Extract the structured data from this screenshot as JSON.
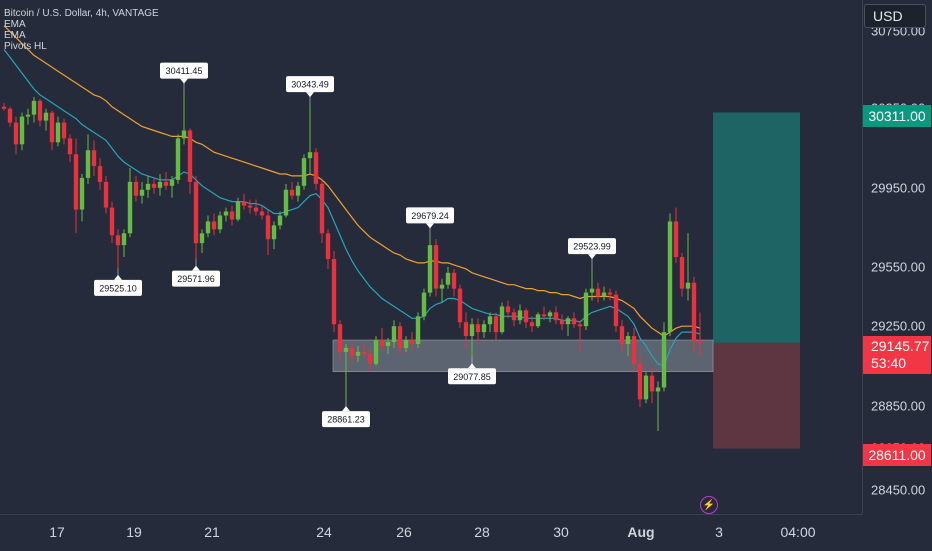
{
  "legend": {
    "symbol": "Bitcoin / U.S. Dollar, 4h, VANTAGE",
    "ind1": "EMA",
    "ind2": "EMA",
    "ind3": "Pivots HL"
  },
  "currency_button": "USD",
  "price_badges": {
    "target": {
      "value": "30311.00",
      "color": "#089981"
    },
    "current": {
      "value": "29145.77",
      "countdown": "53:40",
      "color": "#f23645"
    },
    "stop": {
      "value": "28611.00",
      "color": "#f23645"
    }
  },
  "y_axis_labels": [
    "30750.00",
    "30350.00",
    "29950.00",
    "29550.00",
    "29250.00",
    "28850.00",
    "28650.00",
    "28450.00"
  ],
  "x_axis_labels": [
    "17",
    "19",
    "21",
    "24",
    "26",
    "28",
    "30",
    "Aug",
    "3",
    "04:00"
  ],
  "colors": {
    "up": "#66bb44",
    "down": "#e8323f",
    "ema_fast": "#29a3b8",
    "ema_slow": "#f0a030",
    "zone": "#8a919e",
    "long_target": "#1f6f6d",
    "long_stop": "#6b3a45"
  },
  "chart_data": {
    "type": "candlestick",
    "interval": "4h",
    "y_range": [
      28280,
      30880
    ],
    "pivot_labels": [
      {
        "text": "30411.45",
        "kind": "high",
        "bar": 30,
        "price": 30411.45
      },
      {
        "text": "30343.49",
        "kind": "high",
        "bar": 51,
        "price": 30343.49
      },
      {
        "text": "29679.24",
        "kind": "high",
        "bar": 71,
        "price": 29679.24
      },
      {
        "text": "29523.99",
        "kind": "high",
        "bar": 98,
        "price": 29523.99
      },
      {
        "text": "29525.10",
        "kind": "low",
        "bar": 19,
        "price": 29525.1
      },
      {
        "text": "29571.96",
        "kind": "low",
        "bar": 32,
        "price": 29571.96
      },
      {
        "text": "28861.23",
        "kind": "low",
        "bar": 57,
        "price": 28861.23
      },
      {
        "text": "29077.85",
        "kind": "low",
        "bar": 78,
        "price": 29077.85
      }
    ],
    "support_zone": [
      29000,
      29160
    ],
    "long_position": {
      "entry": 29145.77,
      "target": 30311.0,
      "stop": 28611.0
    },
    "candles": [
      [
        30340,
        30360,
        30320,
        30330
      ],
      [
        30330,
        30340,
        30240,
        30260
      ],
      [
        30260,
        30290,
        30100,
        30150
      ],
      [
        30150,
        30310,
        30120,
        30290
      ],
      [
        30290,
        30330,
        30250,
        30300
      ],
      [
        30300,
        30390,
        30260,
        30370
      ],
      [
        30370,
        30380,
        30240,
        30270
      ],
      [
        30270,
        30330,
        30220,
        30310
      ],
      [
        30310,
        30320,
        30120,
        30160
      ],
      [
        30160,
        30290,
        30140,
        30260
      ],
      [
        30260,
        30280,
        30150,
        30180
      ],
      [
        30180,
        30200,
        30060,
        30100
      ],
      [
        30100,
        30180,
        29700,
        29820
      ],
      [
        29820,
        30000,
        29760,
        29980
      ],
      [
        29980,
        30200,
        29950,
        30120
      ],
      [
        30120,
        30170,
        29990,
        30040
      ],
      [
        30040,
        30080,
        29920,
        29960
      ],
      [
        29960,
        29990,
        29800,
        29830
      ],
      [
        29830,
        29860,
        29650,
        29690
      ],
      [
        29690,
        29720,
        29525,
        29640
      ],
      [
        29640,
        29720,
        29580,
        29700
      ],
      [
        29700,
        30030,
        29680,
        29960
      ],
      [
        29960,
        29990,
        29860,
        29890
      ],
      [
        29890,
        29960,
        29850,
        29920
      ],
      [
        29920,
        29990,
        29880,
        29950
      ],
      [
        29950,
        29980,
        29900,
        29930
      ],
      [
        29930,
        30000,
        29890,
        29960
      ],
      [
        29960,
        30010,
        29920,
        29940
      ],
      [
        29940,
        29990,
        29880,
        29970
      ],
      [
        29970,
        30200,
        29950,
        30180
      ],
      [
        30180,
        30411,
        30150,
        30220
      ],
      [
        30220,
        30230,
        29900,
        29960
      ],
      [
        29960,
        29990,
        29572,
        29650
      ],
      [
        29650,
        29720,
        29600,
        29700
      ],
      [
        29700,
        29790,
        29680,
        29760
      ],
      [
        29760,
        29800,
        29690,
        29720
      ],
      [
        29720,
        29810,
        29700,
        29790
      ],
      [
        29790,
        29830,
        29760,
        29810
      ],
      [
        29810,
        29840,
        29740,
        29770
      ],
      [
        29770,
        29880,
        29760,
        29860
      ],
      [
        29860,
        29900,
        29820,
        29840
      ],
      [
        29840,
        29870,
        29800,
        29830
      ],
      [
        29830,
        29870,
        29790,
        29810
      ],
      [
        29810,
        29840,
        29770,
        29790
      ],
      [
        29790,
        29820,
        29590,
        29670
      ],
      [
        29670,
        29760,
        29620,
        29740
      ],
      [
        29740,
        29810,
        29720,
        29790
      ],
      [
        29790,
        29950,
        29780,
        29920
      ],
      [
        29920,
        29960,
        29870,
        29890
      ],
      [
        29890,
        29960,
        29860,
        29940
      ],
      [
        29940,
        30100,
        29920,
        30080
      ],
      [
        30080,
        30343,
        30000,
        30110
      ],
      [
        30110,
        30130,
        29920,
        29950
      ],
      [
        29950,
        29970,
        29650,
        29700
      ],
      [
        29700,
        29720,
        29520,
        29570
      ],
      [
        29570,
        29610,
        29200,
        29240
      ],
      [
        29240,
        29260,
        29060,
        29100
      ],
      [
        29100,
        29140,
        28861,
        29120
      ],
      [
        29120,
        29150,
        29040,
        29080
      ],
      [
        29080,
        29130,
        29050,
        29100
      ],
      [
        29100,
        29140,
        29070,
        29090
      ],
      [
        29090,
        29120,
        29000,
        29040
      ],
      [
        29040,
        29180,
        29030,
        29160
      ],
      [
        29160,
        29220,
        29100,
        29130
      ],
      [
        29130,
        29170,
        29090,
        29150
      ],
      [
        29150,
        29260,
        29120,
        29230
      ],
      [
        29230,
        29250,
        29090,
        29120
      ],
      [
        29120,
        29180,
        29100,
        29160
      ],
      [
        29160,
        29200,
        29110,
        29140
      ],
      [
        29140,
        29300,
        29120,
        29280
      ],
      [
        29280,
        29420,
        29260,
        29400
      ],
      [
        29400,
        29680,
        29380,
        29640
      ],
      [
        29640,
        29670,
        29380,
        29420
      ],
      [
        29420,
        29470,
        29350,
        29440
      ],
      [
        29440,
        29530,
        29420,
        29500
      ],
      [
        29500,
        29520,
        29380,
        29420
      ],
      [
        29420,
        29440,
        29220,
        29250
      ],
      [
        29250,
        29300,
        29120,
        29180
      ],
      [
        29180,
        29270,
        29078,
        29240
      ],
      [
        29240,
        29270,
        29140,
        29200
      ],
      [
        29200,
        29260,
        29170,
        29240
      ],
      [
        29240,
        29300,
        29200,
        29280
      ],
      [
        29280,
        29300,
        29160,
        29200
      ],
      [
        29200,
        29350,
        29190,
        29330
      ],
      [
        29330,
        29360,
        29270,
        29300
      ],
      [
        29300,
        29320,
        29230,
        29260
      ],
      [
        29260,
        29340,
        29240,
        29310
      ],
      [
        29310,
        29320,
        29220,
        29250
      ],
      [
        29250,
        29280,
        29200,
        29230
      ],
      [
        29230,
        29300,
        29220,
        29290
      ],
      [
        29290,
        29330,
        29260,
        29280
      ],
      [
        29280,
        29310,
        29250,
        29300
      ],
      [
        29300,
        29330,
        29240,
        29260
      ],
      [
        29260,
        29290,
        29210,
        29240
      ],
      [
        29240,
        29280,
        29180,
        29270
      ],
      [
        29270,
        29300,
        29220,
        29240
      ],
      [
        29240,
        29260,
        29100,
        29230
      ],
      [
        29230,
        29420,
        29210,
        29400
      ],
      [
        29400,
        29524,
        29360,
        29420
      ],
      [
        29420,
        29450,
        29350,
        29380
      ],
      [
        29380,
        29430,
        29360,
        29400
      ],
      [
        29400,
        29420,
        29360,
        29390
      ],
      [
        29390,
        29410,
        29200,
        29230
      ],
      [
        29230,
        29260,
        29100,
        29140
      ],
      [
        29140,
        29200,
        29080,
        29180
      ],
      [
        29180,
        29220,
        29000,
        29040
      ],
      [
        29040,
        29080,
        28820,
        28860
      ],
      [
        28860,
        29000,
        28840,
        28980
      ],
      [
        28980,
        29020,
        28840,
        28900
      ],
      [
        28900,
        28950,
        28700,
        28920
      ],
      [
        28920,
        29250,
        28900,
        29200
      ],
      [
        29200,
        29800,
        29180,
        29760
      ],
      [
        29760,
        29830,
        29550,
        29580
      ],
      [
        29580,
        29600,
        29380,
        29420
      ],
      [
        29420,
        29700,
        29360,
        29450
      ],
      [
        29450,
        29480,
        29100,
        29150
      ],
      [
        29150,
        29300,
        29080,
        29145
      ]
    ],
    "ema_fast": [
      30630,
      30590,
      30550,
      30510,
      30470,
      30430,
      30400,
      30380,
      30360,
      30340,
      30320,
      30300,
      30280,
      30250,
      30230,
      30210,
      30190,
      30170,
      30130,
      30090,
      30060,
      30040,
      30020,
      30000,
      29990,
      29980,
      29970,
      29970,
      29970,
      29990,
      30010,
      30000,
      29970,
      29940,
      29920,
      29900,
      29880,
      29870,
      29860,
      29860,
      29860,
      29850,
      29850,
      29840,
      29820,
      29800,
      29800,
      29810,
      29820,
      29830,
      29860,
      29890,
      29900,
      29870,
      29830,
      29760,
      29690,
      29620,
      29560,
      29510,
      29470,
      29430,
      29400,
      29370,
      29350,
      29330,
      29310,
      29290,
      29270,
      29270,
      29280,
      29320,
      29340,
      29350,
      29370,
      29370,
      29360,
      29340,
      29320,
      29310,
      29300,
      29290,
      29290,
      29280,
      29280,
      29280,
      29280,
      29270,
      29270,
      29270,
      29270,
      29270,
      29270,
      29260,
      29260,
      29260,
      29250,
      29280,
      29300,
      29310,
      29320,
      29330,
      29320,
      29300,
      29280,
      29240,
      29170,
      29130,
      29080,
      29040,
      29030,
      29110,
      29170,
      29200,
      29200,
      29200,
      29190
    ],
    "ema_slow": [
      30750,
      30720,
      30690,
      30660,
      30630,
      30600,
      30580,
      30560,
      30540,
      30520,
      30500,
      30480,
      30460,
      30440,
      30420,
      30400,
      30390,
      30370,
      30340,
      30320,
      30300,
      30280,
      30260,
      30240,
      30230,
      30220,
      30210,
      30200,
      30190,
      30190,
      30190,
      30180,
      30160,
      30150,
      30130,
      30110,
      30100,
      30090,
      30080,
      30070,
      30060,
      30050,
      30040,
      30030,
      30020,
      30010,
      30000,
      30000,
      29990,
      29990,
      29990,
      30000,
      29990,
      29970,
      29940,
      29900,
      29860,
      29820,
      29780,
      29740,
      29710,
      29680,
      29660,
      29640,
      29620,
      29600,
      29590,
      29570,
      29560,
      29550,
      29550,
      29560,
      29560,
      29550,
      29550,
      29540,
      29530,
      29520,
      29500,
      29490,
      29480,
      29470,
      29460,
      29450,
      29440,
      29440,
      29430,
      29420,
      29420,
      29410,
      29410,
      29400,
      29400,
      29390,
      29390,
      29380,
      29370,
      29380,
      29380,
      29380,
      29380,
      29380,
      29370,
      29360,
      29340,
      29320,
      29280,
      29250,
      29220,
      29200,
      29180,
      29200,
      29220,
      29230,
      29230,
      29230,
      29220
    ]
  }
}
